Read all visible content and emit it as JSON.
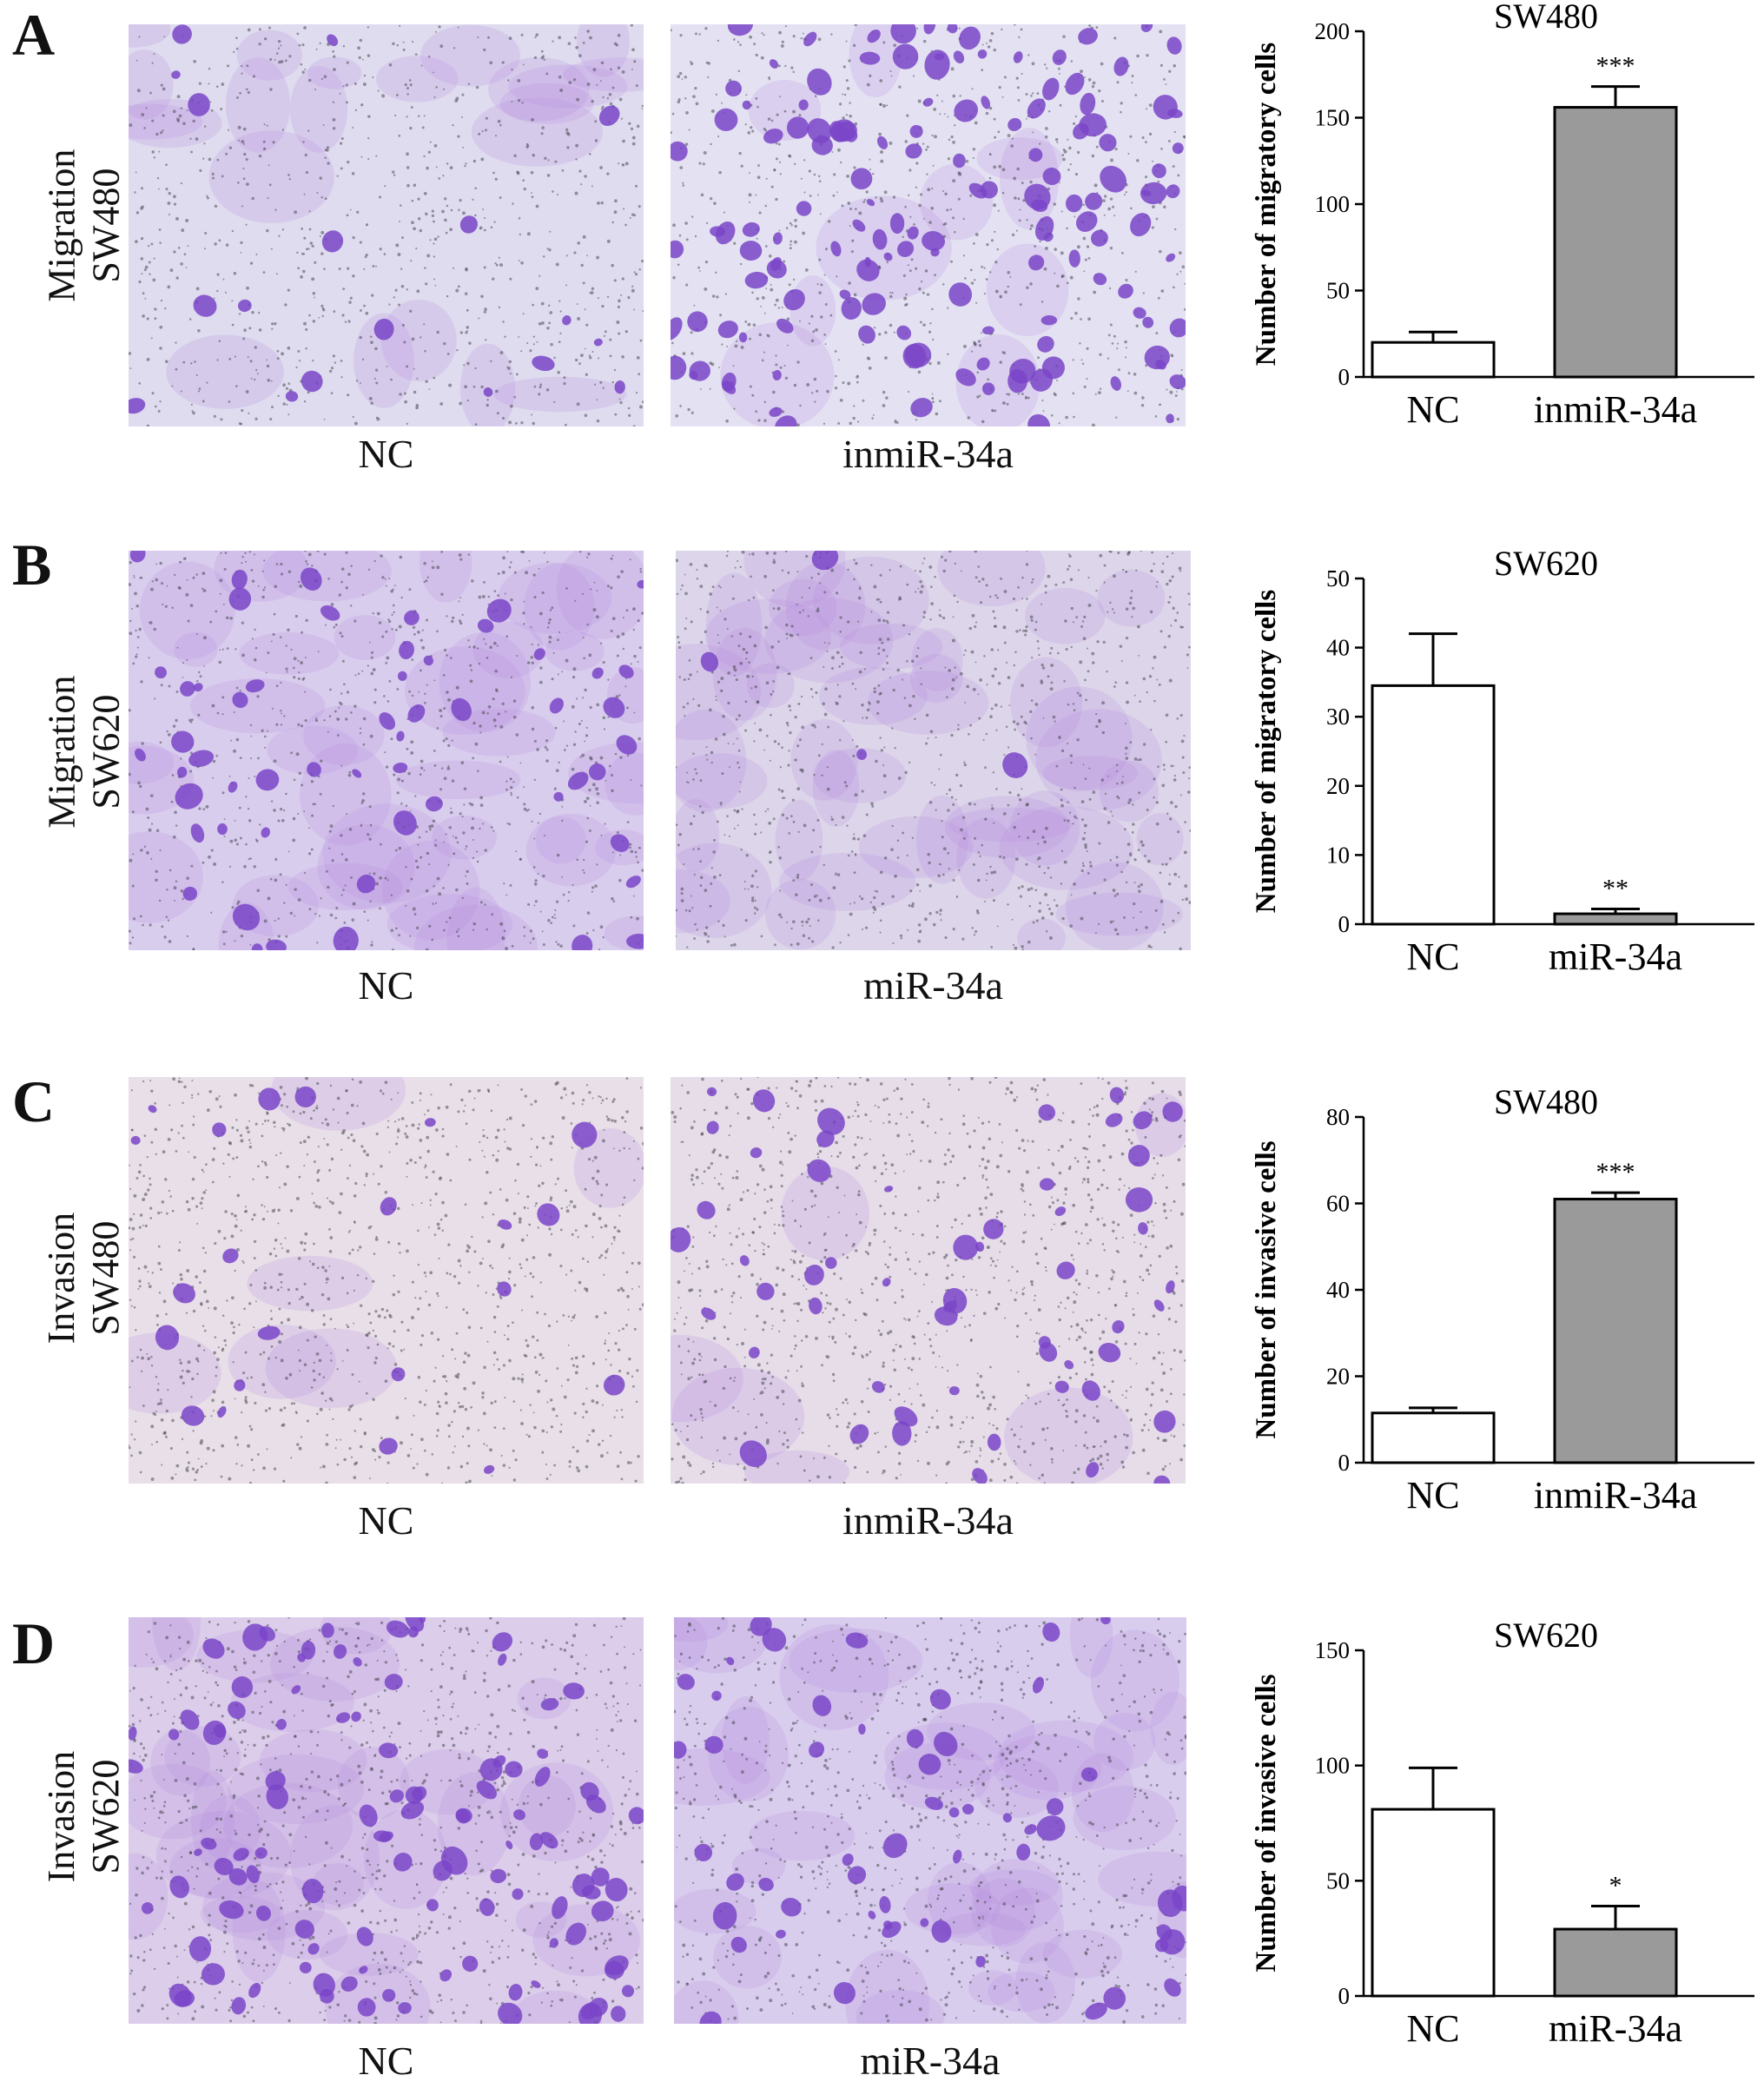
{
  "panels": [
    {
      "letter": "A",
      "row_label": [
        "Migration",
        "SW480"
      ],
      "images": [
        {
          "caption": "NC",
          "stain": "light"
        },
        {
          "caption": "inmiR-34a",
          "stain": "heavy"
        }
      ]
    },
    {
      "letter": "B",
      "row_label": [
        "Migration",
        "SW620"
      ],
      "images": [
        {
          "caption": "NC",
          "stain": "medium"
        },
        {
          "caption": "miR-34a",
          "stain": "faint"
        }
      ]
    },
    {
      "letter": "C",
      "row_label": [
        "Invasion",
        "SW480"
      ],
      "images": [
        {
          "caption": "NC",
          "stain": "sparse"
        },
        {
          "caption": "inmiR-34a",
          "stain": "moderate"
        }
      ]
    },
    {
      "letter": "D",
      "row_label": [
        "Invasion",
        "SW620"
      ],
      "images": [
        {
          "caption": "NC",
          "stain": "dense"
        },
        {
          "caption": "miR-34a",
          "stain": "medium"
        }
      ]
    }
  ],
  "colors": {
    "stain_purple": "#7a45c8",
    "membrane_light": "#e7e2f3",
    "bar_control": "#ffffff",
    "bar_treated": "#9a9a9a"
  },
  "chart_data": [
    {
      "type": "bar",
      "title": "SW480",
      "ylabel": "Number of migratory cells",
      "categories": [
        "NC",
        "inmiR-34a"
      ],
      "values": [
        20,
        156
      ],
      "errors": [
        6,
        12
      ],
      "significance": [
        "",
        "***"
      ],
      "ylim": [
        0,
        200
      ],
      "yticks": [
        0,
        50,
        100,
        150,
        200
      ]
    },
    {
      "type": "bar",
      "title": "SW620",
      "ylabel": "Number of migratory cells",
      "categories": [
        "NC",
        "miR-34a"
      ],
      "values": [
        34.5,
        1.5
      ],
      "errors": [
        7.5,
        0.7
      ],
      "significance": [
        "",
        "**"
      ],
      "ylim": [
        0,
        50
      ],
      "yticks": [
        0,
        10,
        20,
        30,
        40,
        50
      ]
    },
    {
      "type": "bar",
      "title": "SW480",
      "ylabel": "Number of invasive cells",
      "categories": [
        "NC",
        "inmiR-34a"
      ],
      "values": [
        11.5,
        61
      ],
      "errors": [
        1.2,
        1.5
      ],
      "significance": [
        "",
        "***"
      ],
      "ylim": [
        0,
        80
      ],
      "yticks": [
        0,
        20,
        40,
        60,
        80
      ]
    },
    {
      "type": "bar",
      "title": "SW620",
      "ylabel": "Number of invasive cells",
      "categories": [
        "NC",
        "miR-34a"
      ],
      "values": [
        81,
        29
      ],
      "errors": [
        18,
        10
      ],
      "significance": [
        "",
        "*"
      ],
      "ylim": [
        0,
        150
      ],
      "yticks": [
        0,
        50,
        100,
        150
      ]
    }
  ]
}
